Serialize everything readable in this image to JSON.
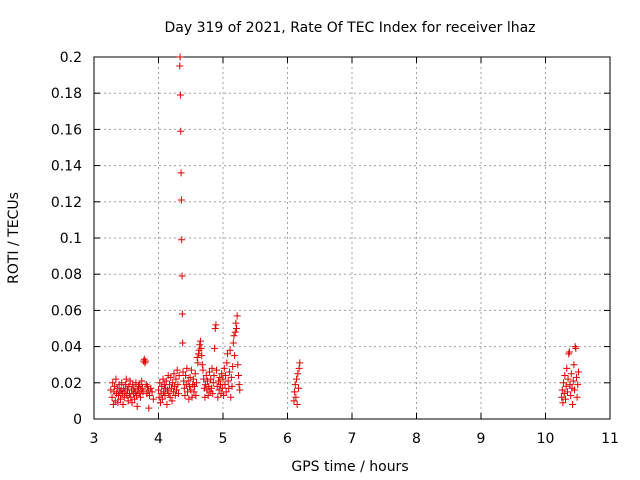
{
  "chart_data": {
    "type": "scatter",
    "title": "Day 319 of 2021, Rate Of TEC Index for receiver lhaz",
    "xlabel": "GPS time / hours",
    "ylabel": "ROTI / TECUs",
    "xlim": [
      3,
      11
    ],
    "ylim": [
      0,
      0.2
    ],
    "xticks": [
      "3",
      "4",
      "5",
      "6",
      "7",
      "8",
      "9",
      "10",
      "11"
    ],
    "yticks": [
      "0",
      "0.02",
      "0.04",
      "0.06",
      "0.08",
      "0.1",
      "0.12",
      "0.14",
      "0.16",
      "0.18",
      "0.2"
    ],
    "grid": true,
    "marker": "+",
    "color": "#e00000",
    "series": [
      {
        "points": [
          [
            3.26,
            0.016
          ],
          [
            3.28,
            0.012
          ],
          [
            3.29,
            0.02
          ],
          [
            3.3,
            0.008
          ],
          [
            3.31,
            0.015
          ],
          [
            3.32,
            0.018
          ],
          [
            3.33,
            0.01
          ],
          [
            3.34,
            0.022
          ],
          [
            3.35,
            0.014
          ],
          [
            3.36,
            0.017
          ],
          [
            3.37,
            0.009
          ],
          [
            3.38,
            0.013
          ],
          [
            3.39,
            0.019
          ],
          [
            3.4,
            0.015
          ],
          [
            3.41,
            0.011
          ],
          [
            3.42,
            0.016
          ],
          [
            3.43,
            0.02
          ],
          [
            3.44,
            0.014
          ],
          [
            3.45,
            0.008
          ],
          [
            3.46,
            0.017
          ],
          [
            3.47,
            0.012
          ],
          [
            3.48,
            0.015
          ],
          [
            3.49,
            0.019
          ],
          [
            3.5,
            0.022
          ],
          [
            3.51,
            0.013
          ],
          [
            3.52,
            0.016
          ],
          [
            3.53,
            0.01
          ],
          [
            3.54,
            0.018
          ],
          [
            3.55,
            0.014
          ],
          [
            3.56,
            0.021
          ],
          [
            3.57,
            0.012
          ],
          [
            3.58,
            0.016
          ],
          [
            3.59,
            0.009
          ],
          [
            3.6,
            0.019
          ],
          [
            3.61,
            0.014
          ],
          [
            3.62,
            0.017
          ],
          [
            3.63,
            0.011
          ],
          [
            3.64,
            0.015
          ],
          [
            3.65,
            0.02
          ],
          [
            3.66,
            0.013
          ],
          [
            3.67,
            0.007
          ],
          [
            3.68,
            0.016
          ],
          [
            3.69,
            0.018
          ],
          [
            3.7,
            0.014
          ],
          [
            3.71,
            0.019
          ],
          [
            3.72,
            0.012
          ],
          [
            3.73,
            0.016
          ],
          [
            3.74,
            0.021
          ],
          [
            3.75,
            0.017
          ],
          [
            3.76,
            0.015
          ],
          [
            3.77,
            0.032
          ],
          [
            3.78,
            0.033
          ],
          [
            3.79,
            0.031
          ],
          [
            3.8,
            0.032
          ],
          [
            3.81,
            0.019
          ],
          [
            3.82,
            0.014
          ],
          [
            3.83,
            0.018
          ],
          [
            3.84,
            0.016
          ],
          [
            3.85,
            0.006
          ],
          [
            3.86,
            0.013
          ],
          [
            3.88,
            0.017
          ],
          [
            3.9,
            0.015
          ],
          [
            3.92,
            0.011
          ],
          [
            4.0,
            0.016
          ],
          [
            4.01,
            0.012
          ],
          [
            4.02,
            0.02
          ],
          [
            4.03,
            0.009
          ],
          [
            4.04,
            0.014
          ],
          [
            4.05,
            0.018
          ],
          [
            4.06,
            0.011
          ],
          [
            4.07,
            0.022
          ],
          [
            4.08,
            0.015
          ],
          [
            4.09,
            0.019
          ],
          [
            4.1,
            0.013
          ],
          [
            4.11,
            0.017
          ],
          [
            4.12,
            0.021
          ],
          [
            4.13,
            0.008
          ],
          [
            4.14,
            0.016
          ],
          [
            4.15,
            0.024
          ],
          [
            4.16,
            0.014
          ],
          [
            4.17,
            0.019
          ],
          [
            4.18,
            0.012
          ],
          [
            4.19,
            0.023
          ],
          [
            4.2,
            0.017
          ],
          [
            4.21,
            0.01
          ],
          [
            4.22,
            0.02
          ],
          [
            4.23,
            0.015
          ],
          [
            4.24,
            0.025
          ],
          [
            4.25,
            0.018
          ],
          [
            4.26,
            0.013
          ],
          [
            4.27,
            0.022
          ],
          [
            4.28,
            0.016
          ],
          [
            4.29,
            0.027
          ],
          [
            4.3,
            0.019
          ],
          [
            4.31,
            0.014
          ],
          [
            4.32,
            0.024
          ],
          [
            4.33,
            0.195
          ],
          [
            4.335,
            0.2
          ],
          [
            4.34,
            0.179
          ],
          [
            4.345,
            0.159
          ],
          [
            4.35,
            0.136
          ],
          [
            4.355,
            0.121
          ],
          [
            4.36,
            0.099
          ],
          [
            4.365,
            0.079
          ],
          [
            4.37,
            0.058
          ],
          [
            4.375,
            0.042
          ],
          [
            4.38,
            0.026
          ],
          [
            4.39,
            0.021
          ],
          [
            4.4,
            0.017
          ],
          [
            4.41,
            0.013
          ],
          [
            4.42,
            0.024
          ],
          [
            4.43,
            0.019
          ],
          [
            4.44,
            0.028
          ],
          [
            4.45,
            0.015
          ],
          [
            4.46,
            0.021
          ],
          [
            4.47,
            0.011
          ],
          [
            4.48,
            0.018
          ],
          [
            4.49,
            0.023
          ],
          [
            4.5,
            0.016
          ],
          [
            4.51,
            0.027
          ],
          [
            4.52,
            0.012
          ],
          [
            4.53,
            0.019
          ],
          [
            4.54,
            0.022
          ],
          [
            4.55,
            0.015
          ],
          [
            4.56,
            0.018
          ],
          [
            4.57,
            0.025
          ],
          [
            4.58,
            0.013
          ],
          [
            4.59,
            0.02
          ],
          [
            4.6,
            0.034
          ],
          [
            4.61,
            0.031
          ],
          [
            4.62,
            0.036
          ],
          [
            4.63,
            0.038
          ],
          [
            4.64,
            0.041
          ],
          [
            4.65,
            0.043
          ],
          [
            4.66,
            0.039
          ],
          [
            4.67,
            0.035
          ],
          [
            4.68,
            0.03
          ],
          [
            4.69,
            0.027
          ],
          [
            4.7,
            0.022
          ],
          [
            4.71,
            0.017
          ],
          [
            4.72,
            0.012
          ],
          [
            4.73,
            0.019
          ],
          [
            4.74,
            0.024
          ],
          [
            4.75,
            0.016
          ],
          [
            4.76,
            0.021
          ],
          [
            4.77,
            0.013
          ],
          [
            4.78,
            0.018
          ],
          [
            4.79,
            0.026
          ],
          [
            4.8,
            0.015
          ],
          [
            4.81,
            0.022
          ],
          [
            4.82,
            0.017
          ],
          [
            4.83,
            0.028
          ],
          [
            4.84,
            0.014
          ],
          [
            4.85,
            0.02
          ],
          [
            4.86,
            0.024
          ],
          [
            4.87,
            0.039
          ],
          [
            4.88,
            0.05
          ],
          [
            4.89,
            0.052
          ],
          [
            4.9,
            0.027
          ],
          [
            4.91,
            0.018
          ],
          [
            4.92,
            0.012
          ],
          [
            4.93,
            0.021
          ],
          [
            4.94,
            0.016
          ],
          [
            4.95,
            0.023
          ],
          [
            4.96,
            0.019
          ],
          [
            4.97,
            0.014
          ],
          [
            4.98,
            0.025
          ],
          [
            4.99,
            0.017
          ],
          [
            5.0,
            0.022
          ],
          [
            5.01,
            0.013
          ],
          [
            5.02,
            0.028
          ],
          [
            5.03,
            0.019
          ],
          [
            5.04,
            0.024
          ],
          [
            5.05,
            0.015
          ],
          [
            5.06,
            0.031
          ],
          [
            5.07,
            0.036
          ],
          [
            5.08,
            0.021
          ],
          [
            5.09,
            0.017
          ],
          [
            5.1,
            0.026
          ],
          [
            5.11,
            0.038
          ],
          [
            5.12,
            0.012
          ],
          [
            5.13,
            0.023
          ],
          [
            5.14,
            0.018
          ],
          [
            5.15,
            0.029
          ],
          [
            5.16,
            0.042
          ],
          [
            5.17,
            0.046
          ],
          [
            5.18,
            0.035
          ],
          [
            5.19,
            0.048
          ],
          [
            5.2,
            0.053
          ],
          [
            5.21,
            0.05
          ],
          [
            5.22,
            0.057
          ],
          [
            5.23,
            0.03
          ],
          [
            5.24,
            0.024
          ],
          [
            5.25,
            0.019
          ],
          [
            5.26,
            0.016
          ],
          [
            6.1,
            0.01
          ],
          [
            6.11,
            0.015
          ],
          [
            6.12,
            0.019
          ],
          [
            6.13,
            0.012
          ],
          [
            6.14,
            0.022
          ],
          [
            6.15,
            0.008
          ],
          [
            6.16,
            0.025
          ],
          [
            6.17,
            0.017
          ],
          [
            6.18,
            0.028
          ],
          [
            6.19,
            0.031
          ],
          [
            10.25,
            0.012
          ],
          [
            10.26,
            0.016
          ],
          [
            10.27,
            0.009
          ],
          [
            10.28,
            0.02
          ],
          [
            10.29,
            0.014
          ],
          [
            10.3,
            0.024
          ],
          [
            10.31,
            0.011
          ],
          [
            10.32,
            0.018
          ],
          [
            10.33,
            0.028
          ],
          [
            10.34,
            0.015
          ],
          [
            10.35,
            0.022
          ],
          [
            10.36,
            0.036
          ],
          [
            10.37,
            0.037
          ],
          [
            10.38,
            0.019
          ],
          [
            10.39,
            0.013
          ],
          [
            10.4,
            0.025
          ],
          [
            10.41,
            0.017
          ],
          [
            10.42,
            0.008
          ],
          [
            10.43,
            0.021
          ],
          [
            10.44,
            0.03
          ],
          [
            10.45,
            0.016
          ],
          [
            10.46,
            0.04
          ],
          [
            10.47,
            0.039
          ],
          [
            10.48,
            0.023
          ],
          [
            10.49,
            0.012
          ],
          [
            10.5,
            0.019
          ],
          [
            10.51,
            0.026
          ]
        ]
      }
    ]
  }
}
